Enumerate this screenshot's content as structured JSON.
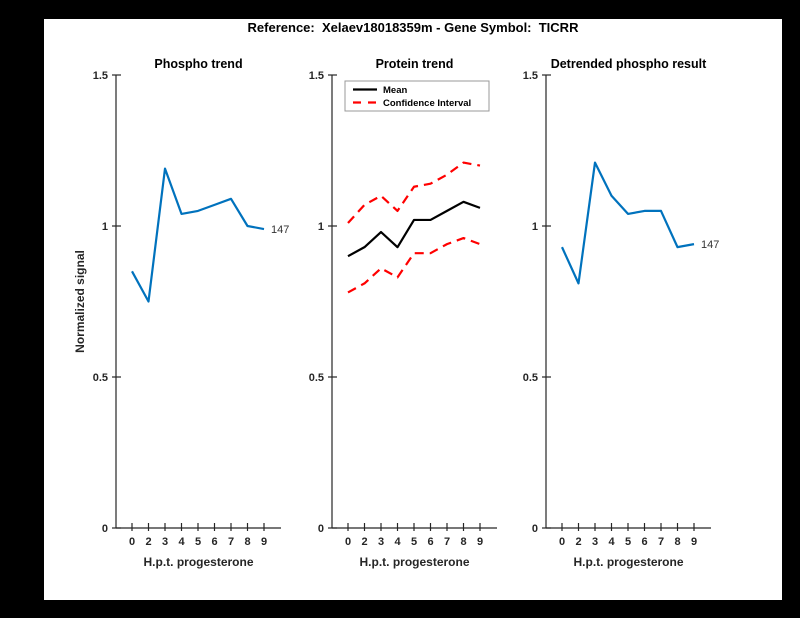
{
  "window": {
    "background_color": "#000000",
    "canvas_color": "#ffffff"
  },
  "figure_title": "Reference:  Xelaev18018359m - Gene Symbol:  TICRR",
  "axes_common": {
    "xlabel": "H.p.t. progesterone",
    "ylabel": "Normalized signal",
    "xtick_labels": [
      "0",
      "2",
      "3",
      "4",
      "5",
      "6",
      "7",
      "8",
      "9"
    ],
    "ytick_labels": [
      "0",
      "0.5",
      "1",
      "1.5"
    ],
    "ytick_values": [
      0,
      0.5,
      1,
      1.5
    ],
    "ylim": [
      0,
      1.5
    ],
    "grid": false,
    "box": "off"
  },
  "colors": {
    "phospho_line": "#0072BD",
    "mean_line": "#000000",
    "confidence_line": "#FF0000",
    "axis_color": "#262626"
  },
  "chart_data": [
    {
      "id": "phospho-trend",
      "type": "line",
      "title": "Phospho trend",
      "x": [
        0,
        2,
        3,
        4,
        5,
        6,
        7,
        8,
        9
      ],
      "xlabel": "H.p.t. progesterone",
      "ylabel": "Normalized signal",
      "ylim": [
        0,
        1.5
      ],
      "series": [
        {
          "name": "Phospho signal",
          "color": "#0072BD",
          "style": "solid",
          "values": [
            0.85,
            0.75,
            1.19,
            1.04,
            1.05,
            1.07,
            1.09,
            1.0,
            0.99
          ]
        }
      ],
      "end_label": "147",
      "legend": null
    },
    {
      "id": "protein-trend",
      "type": "line",
      "title": "Protein trend",
      "x": [
        0,
        2,
        3,
        4,
        5,
        6,
        7,
        8,
        9
      ],
      "xlabel": "H.p.t. progesterone",
      "ylim": [
        0,
        1.5
      ],
      "series": [
        {
          "name": "Mean",
          "color": "#000000",
          "style": "solid",
          "values": [
            0.9,
            0.93,
            0.98,
            0.93,
            1.02,
            1.02,
            1.05,
            1.08,
            1.06
          ]
        },
        {
          "name": "Confidence Interval upper",
          "color": "#FF0000",
          "style": "dashed",
          "values": [
            1.01,
            1.07,
            1.1,
            1.05,
            1.13,
            1.14,
            1.17,
            1.21,
            1.2
          ]
        },
        {
          "name": "Confidence Interval lower",
          "color": "#FF0000",
          "style": "dashed",
          "values": [
            0.78,
            0.81,
            0.86,
            0.83,
            0.91,
            0.91,
            0.94,
            0.96,
            0.94
          ]
        }
      ],
      "end_label": null,
      "legend": {
        "position": "northwest",
        "entries": [
          {
            "label": "Mean",
            "color": "#000000",
            "style": "solid"
          },
          {
            "label": "Confidence Interval",
            "color": "#FF0000",
            "style": "dashed"
          }
        ]
      }
    },
    {
      "id": "detrended-phospho",
      "type": "line",
      "title": "Detrended phospho result",
      "x": [
        0,
        2,
        3,
        4,
        5,
        6,
        7,
        8,
        9
      ],
      "xlabel": "H.p.t. progesterone",
      "ylim": [
        0,
        1.5
      ],
      "series": [
        {
          "name": "Detrended phospho signal",
          "color": "#0072BD",
          "style": "solid",
          "values": [
            0.93,
            0.81,
            1.21,
            1.1,
            1.04,
            1.05,
            1.05,
            0.93,
            0.94
          ]
        }
      ],
      "end_label": "147",
      "legend": null
    }
  ]
}
